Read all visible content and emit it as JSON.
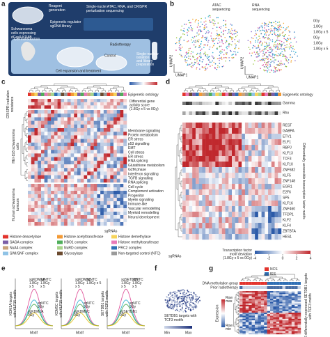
{
  "a": {
    "label": "a",
    "reagent": [
      "Reagent",
      "generation"
    ],
    "cells": [
      "Schwannoma",
      "cells expressing",
      "dCas9-KRAB"
    ],
    "library": [
      "Epigenetic regulator",
      "sgRNA library"
    ],
    "sequencing": [
      "Single-nuclei ATAC, RNA, and CRISPR",
      "perturbation sequencing"
    ],
    "transduction": "Cell transduction",
    "radiotherapy": "Radiotherapy",
    "control": "Control",
    "expansion": "Cell expansion and treatment",
    "isolation": [
      "Single-nuclear",
      "isolation",
      "and library",
      "preparation"
    ]
  },
  "b": {
    "label": "b",
    "atac": [
      "ATAC",
      "sequencing"
    ],
    "rna": [
      "RNA",
      "sequencing"
    ],
    "umap1": "UMAP1",
    "umap2": "UMAP2",
    "conditions": [
      {
        "name": "0Gy",
        "color": "#f2a93b"
      },
      {
        "name": "1.8Gy",
        "color": "#e0569c"
      },
      {
        "name": "1.8Gy x 5",
        "color": "#3fb6d6"
      },
      {
        "name": "0Gy",
        "color": "#9bc53d"
      },
      {
        "name": "1.8Gy",
        "color": "#8a6bc9"
      },
      {
        "name": "1.8Gy x 5",
        "color": "#2f7fc1"
      }
    ]
  },
  "c": {
    "label": "c",
    "ontology": "Epigenetic ontology",
    "scale_title": [
      "Differential gene",
      "activity score",
      "(1.8Gy x 5 vs 0Gy)"
    ],
    "group1": [
      "CRISPRi radiation",
      "resistance"
    ],
    "group2": [
      "HEI-193 schwannoma",
      "cells"
    ],
    "group3": [
      "Human schwannoma",
      "tumours"
    ],
    "pathways": [
      {
        "name": "Membrane signalling",
        "color": "#b04ad1"
      },
      {
        "name": "Protein metabolism",
        "color": "#3f8fd8"
      },
      {
        "name": "ER stress",
        "color": "#6a4ad1"
      },
      {
        "name": "p53 signalling",
        "color": "#1aa0a8"
      },
      {
        "name": "EMT",
        "color": "#d18a1a"
      },
      {
        "name": "Cell stress",
        "color": "#c43a8f"
      },
      {
        "name": "ER stress",
        "color": "#6a4ad1"
      },
      {
        "name": "RNA splicing",
        "color": "#2f6fd1"
      },
      {
        "name": "Glutathione metabolism",
        "color": "#8a2fd1"
      },
      {
        "name": "G2M phase",
        "color": "#2fa84a"
      },
      {
        "name": "Interferon signalling",
        "color": "#d1304a"
      },
      {
        "name": "TGFB signalling",
        "color": "#d1a01a"
      },
      {
        "name": "RNA splicing",
        "color": "#2f6fd1"
      },
      {
        "name": "Cell cycle",
        "color": "#3fa05a"
      },
      {
        "name": "Complement activation",
        "color": "#b04ad1"
      },
      {
        "name": "Progenitor",
        "color": "#d1301a"
      },
      {
        "name": "Myelin signalling",
        "color": "#2f8fd1"
      },
      {
        "name": "Immune-like",
        "color": "#c43a8f"
      },
      {
        "name": "Vascular remodelling",
        "color": "#4a5ad1"
      },
      {
        "name": "Myeloid remodelling",
        "color": "#d17a1a"
      },
      {
        "name": "Neural development",
        "color": "#3fa05a"
      }
    ],
    "sgrnas": "sgRNAs",
    "ontology_legend": [
      {
        "name": "Histone deacetylase",
        "color": "#e2342d"
      },
      {
        "name": "Histone acetyltransferase",
        "color": "#f39a35"
      },
      {
        "name": "Histone demethylase",
        "color": "#f7d45a"
      },
      {
        "name": "SAGA complex",
        "color": "#7b5ea7"
      },
      {
        "name": "HBO1 complex",
        "color": "#4fae5a"
      },
      {
        "name": "Histone methyltransferase",
        "color": "#e87ab8"
      },
      {
        "name": "NuA4 complex",
        "color": "#c9a27a"
      },
      {
        "name": "NuRD complex",
        "color": "#a7d48a"
      },
      {
        "name": "PRC2 complex",
        "color": "#2f6fb5"
      },
      {
        "name": "SWI/SNF complex",
        "color": "#8fc3e6"
      },
      {
        "name": "Glycosylase",
        "color": "#6b4a2f"
      },
      {
        "name": "Non-targeted control (NTC)",
        "color": "#9a9a9a"
      }
    ]
  },
  "d": {
    "label": "d",
    "ontology": "Epigenetic ontology",
    "gamma": "Gamma",
    "rho": "Rho",
    "motifs": [
      "REST",
      "GABPA",
      "ETV1",
      "ELF1",
      "RBPJ",
      "KLF13",
      "TCF3",
      "KLF10",
      "ZNF682",
      "KLF5",
      "ZNF148",
      "EGR1",
      "E2F6",
      "SP5",
      "KLF16",
      "ZNF460",
      "TFDP1",
      "KLF2",
      "KLF4",
      "ZBTB7A",
      "HES1"
    ],
    "side": [
      "Differentially accessible transcription factor motifs"
    ],
    "sgrnas": "sgRNAs",
    "scale_title": [
      "Transcription factor",
      "motif deviation",
      "(1.8Gy x 5 vs 0Gy)"
    ],
    "scale_ticks": [
      -4,
      -2,
      0,
      2,
      4
    ]
  },
  "e": {
    "label": "e",
    "xlabel": "Motif",
    "plots": [
      {
        "title": [
          "KDM1A targets",
          "with KLF15 motifs"
        ],
        "groups": [
          {
            "name": [
              "sgKDM1A",
              "1.8Gy",
              "x 5"
            ],
            "color": "#e0569c"
          },
          {
            "name": [
              "sgNTC",
              "1.8Gy",
              "x 5"
            ],
            "color": "#3fb6d6"
          },
          {
            "name": [
              "sgNTC",
              "0Gy"
            ],
            "color": "#4fae5a"
          },
          {
            "name": [
              "sgKDM1A",
              "0Gy"
            ],
            "color": "#e5c21a"
          }
        ]
      },
      {
        "title": [
          "KDM5C targets",
          "with KLF15 motifs"
        ],
        "groups": [
          {
            "name": [
              "sgKDM5C",
              "1.8Gy",
              "x 5"
            ],
            "color": "#e0569c"
          },
          {
            "name": [
              "sgNTC",
              "1.8Gy x 5"
            ],
            "color": "#3fb6d6"
          },
          {
            "name": [
              "sgNTC",
              "0Gy"
            ],
            "color": "#4fae5a"
          },
          {
            "name": [
              "sgKDM5C",
              "0Gy"
            ],
            "color": "#e5c21a"
          }
        ]
      },
      {
        "title": [
          "SETDB1 targets",
          "with TCF3 motifs"
        ],
        "groups": [
          {
            "name": [
              "sgSETDB1",
              "1.8Gy",
              "x 5"
            ],
            "color": "#e0569c"
          },
          {
            "name": [
              "sgNTC",
              "1.8Gy",
              "x 5"
            ],
            "color": "#3fb6d6"
          },
          {
            "name": [
              "sgNTC",
              "0Gy"
            ],
            "color": "#4fae5a"
          },
          {
            "name": [
              "sgSETDB1",
              "0Gy"
            ],
            "color": "#e5c21a"
          }
        ]
      }
    ]
  },
  "f": {
    "label": "f",
    "title": [
      "SETDB1 targets with",
      "TCF3 motifs"
    ],
    "min": "Min",
    "max": "Max"
  },
  "g": {
    "label": "g",
    "groups": [
      {
        "name": "NCS",
        "color": "#e2342d"
      },
      {
        "name": "IES",
        "color": "#2f6fb5"
      }
    ],
    "methylation": "DNA methylation group",
    "radiotherapy": "Prior radiotherapy",
    "expression": "Expression",
    "rowmax": [
      "Row",
      "max"
    ],
    "rowmin": [
      "Row",
      "min"
    ],
    "side": [
      "56 differentially expressed SETDB1 targets",
      "with TCF3 motifs"
    ]
  }
}
